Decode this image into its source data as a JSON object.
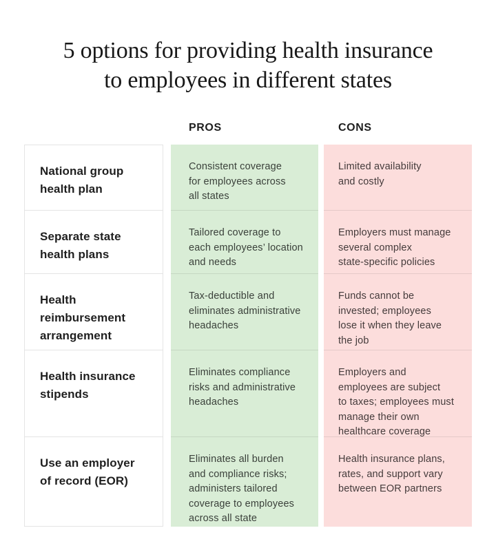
{
  "title": {
    "line1": "5 options for providing health insurance",
    "line2": "to employees in different states"
  },
  "table": {
    "pros_header": "PROS",
    "cons_header": "CONS",
    "rows": [
      {
        "option": "National group\nhealth plan",
        "pro": "Consistent coverage\nfor employees across\nall states",
        "con": "Limited availability\nand costly"
      },
      {
        "option": "Separate state\nhealth plans",
        "pro": "Tailored coverage to\neach employees’ location\nand needs",
        "con": "Employers must manage\nseveral complex\nstate-specific policies"
      },
      {
        "option": "Health\nreimbursement\narrangement",
        "pro": "Tax-deductible and\neliminates administrative\nheadaches",
        "con": "Funds cannot be\ninvested; employees\nlose it when they leave\nthe job"
      },
      {
        "option": "Health insurance\nstipends",
        "pro": "Eliminates compliance\nrisks and administrative\nheadaches",
        "con": "Employers and\nemployees are subject\nto taxes; employees must\nmanage their own\nhealthcare coverage"
      },
      {
        "option": "Use an employer\nof record (EOR)",
        "pro": "Eliminates all burden\nand compliance risks;\nadministers tailored\ncoverage to employees\nacross all state",
        "con": "Health insurance plans,\nrates, and support vary\nbetween EOR partners"
      }
    ]
  },
  "colors": {
    "pros_column_bg": "#d9edd6",
    "cons_column_bg": "#fcdddc",
    "cell_border": "#e4e4e4"
  }
}
